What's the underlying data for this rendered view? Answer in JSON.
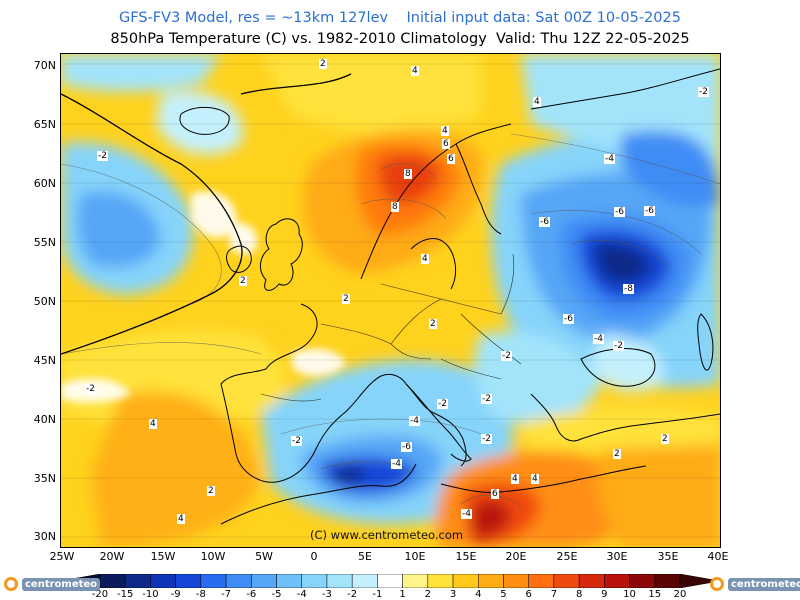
{
  "header": {
    "line1": "GFS-FV3 Model, res = ~13km 127lev    Initial input data: Sat 00Z 10-05-2025",
    "line2": "850hPa Temperature (C) vs. 1982-2010 Climatology  Valid: Thu 12Z 22-05-2025"
  },
  "map": {
    "lat_labels": [
      "70N",
      "65N",
      "60N",
      "55N",
      "50N",
      "45N",
      "40N",
      "35N",
      "30N"
    ],
    "lon_labels": [
      "25W",
      "20W",
      "15W",
      "10W",
      "5W",
      "0",
      "5E",
      "10E",
      "15E",
      "20E",
      "25E",
      "30E",
      "35E",
      "40E"
    ],
    "credit": "(C) www.centrometeo.com",
    "contour_labels": [
      "2",
      "4",
      "4",
      "4",
      "-2",
      "6",
      "8",
      "8",
      "6",
      "-4",
      "-6",
      "-6",
      "-6",
      "-2",
      "2",
      "2",
      "4",
      "-8",
      "-6",
      "-4",
      "-2",
      "-2",
      "2",
      "-2",
      "-2",
      "-4",
      "-2",
      "-6",
      "-2",
      "4",
      "4",
      "-4",
      "6",
      "2",
      "-4",
      "4",
      "2",
      "-2",
      "2",
      "4"
    ]
  },
  "colorbar": {
    "labels": [
      "-20",
      "-15",
      "-10",
      "-9",
      "-8",
      "-7",
      "-6",
      "-5",
      "-4",
      "-3",
      "-2",
      "-1",
      "1",
      "2",
      "3",
      "4",
      "5",
      "6",
      "7",
      "8",
      "9",
      "10",
      "15",
      "20"
    ],
    "colors": [
      "#0a1a5a",
      "#0d2a8a",
      "#1034b8",
      "#1546d8",
      "#2a6cf0",
      "#3f8cf5",
      "#56a6f7",
      "#6ec0f8",
      "#86d4fa",
      "#a3e4fb",
      "#c4f0fd",
      "#ffffff",
      "#fff48a",
      "#ffe23a",
      "#ffc81a",
      "#ffab14",
      "#ff8e12",
      "#ff6e10",
      "#f04a0e",
      "#d6280c",
      "#b8120a",
      "#8c0808",
      "#5a0404"
    ]
  },
  "logos": {
    "left": "centrometeo",
    "right": "centrometeo"
  }
}
